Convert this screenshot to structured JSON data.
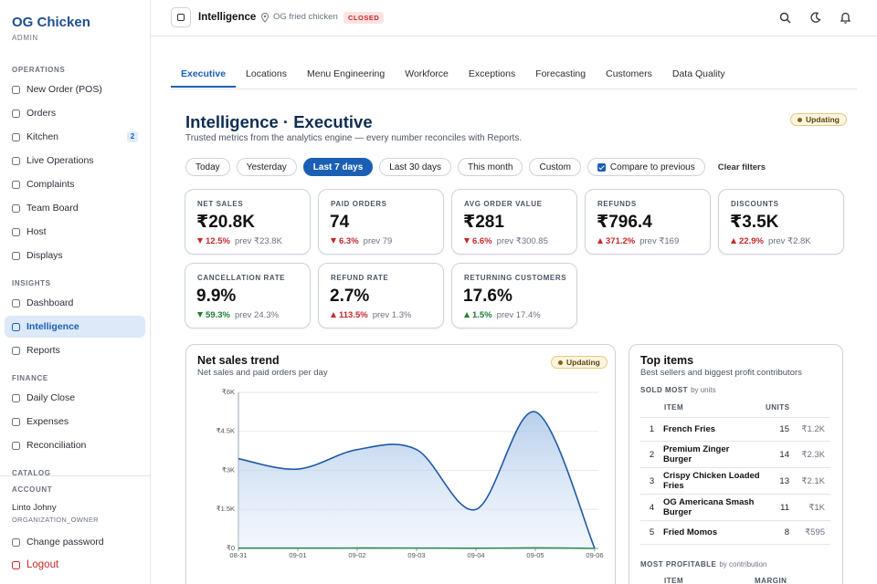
{
  "sidebar": {
    "brand": "OG Chicken",
    "role": "ADMIN",
    "sections": [
      {
        "title": "OPERATIONS",
        "items": [
          {
            "label": "New Order (POS)"
          },
          {
            "label": "Orders"
          },
          {
            "label": "Kitchen",
            "badge": 2
          },
          {
            "label": "Live Operations"
          },
          {
            "label": "Complaints"
          },
          {
            "label": "Team Board"
          },
          {
            "label": "Host"
          },
          {
            "label": "Displays"
          }
        ]
      },
      {
        "title": "INSIGHTS",
        "items": [
          {
            "label": "Dashboard"
          },
          {
            "label": "Intelligence",
            "active": true
          },
          {
            "label": "Reports"
          }
        ]
      },
      {
        "title": "FINANCE",
        "items": [
          {
            "label": "Daily Close"
          },
          {
            "label": "Expenses"
          },
          {
            "label": "Reconciliation"
          }
        ]
      },
      {
        "title": "CATALOG",
        "items": []
      }
    ],
    "account": {
      "title": "ACCOUNT",
      "name": "Linto Johny",
      "org": "ORGANIZATION_OWNER",
      "change_password": "Change password",
      "logout": "Logout"
    }
  },
  "topbar": {
    "title": "Intelligence",
    "location": "OG fried chicken",
    "status": "CLOSED"
  },
  "tabs": {
    "items": [
      "Executive",
      "Locations",
      "Menu Engineering",
      "Workforce",
      "Exceptions",
      "Forecasting",
      "Customers",
      "Data Quality"
    ],
    "active": 0
  },
  "header": {
    "title": "Intelligence · Executive",
    "subtitle": "Trusted metrics from the analytics engine — every number reconciles with Reports.",
    "status": "Updating"
  },
  "filters": {
    "ranges": [
      "Today",
      "Yesterday",
      "Last 7 days",
      "Last 30 days",
      "This month",
      "Custom"
    ],
    "active": 2,
    "compare": {
      "label": "Compare to previous",
      "checked": true
    },
    "clear": "Clear filters"
  },
  "kpis": [
    {
      "label": "NET SALES",
      "value": "₹20.8K",
      "delta": "12.5%",
      "direction": "down",
      "tone": "bad",
      "prev": "prev ₹23.8K"
    },
    {
      "label": "PAID ORDERS",
      "value": "74",
      "delta": "6.3%",
      "direction": "down",
      "tone": "bad",
      "prev": "prev 79"
    },
    {
      "label": "AVG ORDER VALUE",
      "value": "₹281",
      "delta": "6.6%",
      "direction": "down",
      "tone": "bad",
      "prev": "prev ₹300.85"
    },
    {
      "label": "REFUNDS",
      "value": "₹796.4",
      "delta": "371.2%",
      "direction": "up",
      "tone": "bad",
      "prev": "prev ₹169"
    },
    {
      "label": "DISCOUNTS",
      "value": "₹3.5K",
      "delta": "22.9%",
      "direction": "up",
      "tone": "bad",
      "prev": "prev ₹2.8K"
    },
    {
      "label": "CANCELLATION RATE",
      "value": "9.9%",
      "delta": "59.3%",
      "direction": "down",
      "tone": "good",
      "prev": "prev 24.3%"
    },
    {
      "label": "REFUND RATE",
      "value": "2.7%",
      "delta": "113.5%",
      "direction": "up",
      "tone": "bad",
      "prev": "prev 1.3%"
    },
    {
      "label": "RETURNING CUSTOMERS",
      "value": "17.6%",
      "delta": "1.5%",
      "direction": "up",
      "tone": "good",
      "prev": "prev 17.4%"
    }
  ],
  "trend": {
    "type": "line",
    "title": "Net sales trend",
    "subtitle": "Net sales and paid orders per day",
    "status": "Updating",
    "x": [
      "08-31",
      "09-01",
      "09-02",
      "09-03",
      "09-04",
      "09-05",
      "09-06"
    ],
    "series": [
      {
        "color": "#1f5aa6",
        "area": true,
        "values": [
          3450,
          3050,
          3800,
          3800,
          1500,
          5250,
          0
        ]
      },
      {
        "color": "#2e8b57",
        "area": false,
        "values": [
          12,
          10,
          14,
          13,
          6,
          19,
          0
        ]
      }
    ],
    "ylim": [
      0,
      6000
    ],
    "yticks": [
      {
        "value": 0,
        "label": "₹0"
      },
      {
        "value": 1500,
        "label": "₹1.5K"
      },
      {
        "value": 3000,
        "label": "₹3K"
      },
      {
        "value": 4500,
        "label": "₹4.5K"
      },
      {
        "value": 6000,
        "label": "₹6K"
      }
    ],
    "grid": true
  },
  "top_items": {
    "title": "Top items",
    "subtitle": "Best sellers and biggest profit contributors",
    "sold_most": {
      "title": "SOLD MOST",
      "note": "by units",
      "columns": [
        "ITEM",
        "UNITS"
      ],
      "rows": [
        {
          "rank": 1,
          "name": "French Fries",
          "units": 15,
          "revenue": "₹1.2K"
        },
        {
          "rank": 2,
          "name": "Premium Zinger Burger",
          "units": 14,
          "revenue": "₹2.3K"
        },
        {
          "rank": 3,
          "name": "Crispy Chicken Loaded Fries",
          "units": 13,
          "revenue": "₹2.1K"
        },
        {
          "rank": 4,
          "name": "OG Americana Smash Burger",
          "units": 11,
          "revenue": "₹1K"
        },
        {
          "rank": 5,
          "name": "Fried Momos",
          "units": 8,
          "revenue": "₹595"
        }
      ]
    },
    "most_profitable": {
      "title": "MOST PROFITABLE",
      "note": "by contribution",
      "columns": [
        "ITEM",
        "MARGIN"
      ]
    }
  }
}
